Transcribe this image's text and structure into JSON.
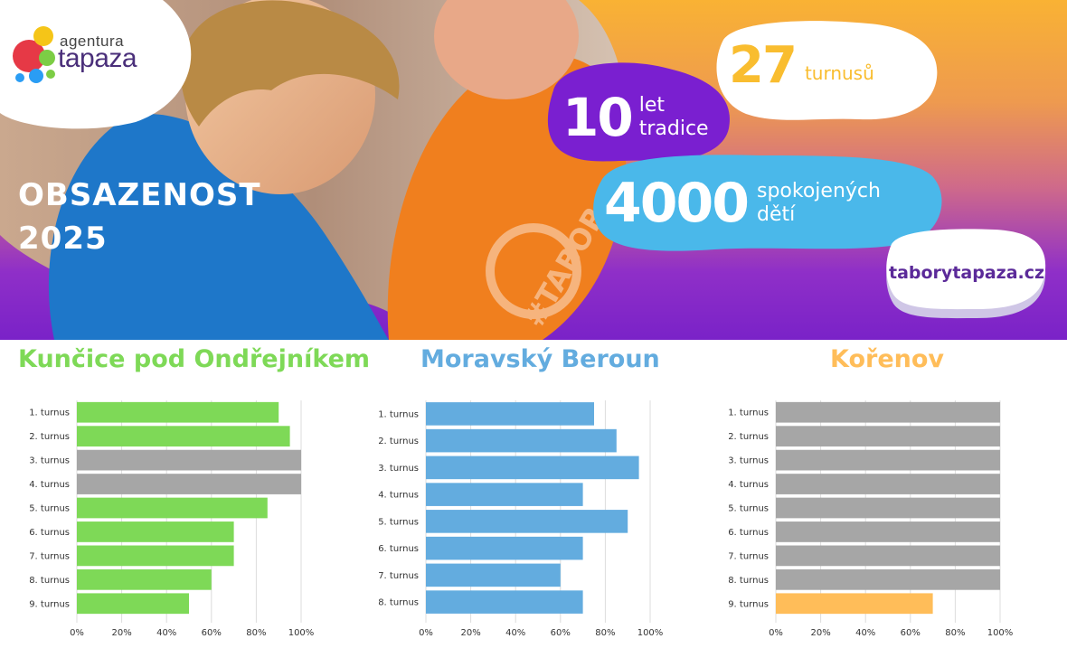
{
  "logo": {
    "top": "agentura",
    "main": "tapaza"
  },
  "hero": {
    "title_line1": "OBSAZENOST",
    "title_line2": "2025",
    "stat_years": {
      "num": "10",
      "line1": "let",
      "line2": "tradice"
    },
    "stat_turns": {
      "num": "27",
      "label": "turnusů"
    },
    "stat_kids": {
      "num": "4000",
      "line1": "spokojených",
      "line2": "dětí"
    },
    "badge_text": "#TABOR",
    "website": "taborytapaza.cz"
  },
  "colors": {
    "green": "#7ed957",
    "blue": "#63acdf",
    "orange": "#ffbd59",
    "gray": "#a6a6a6",
    "purple": "#7a22c8",
    "cyan": "#4ab8ea"
  },
  "chart_data": [
    {
      "type": "bar",
      "title": "Kunčice pod Ondřejníkem",
      "categories": [
        "1. turnus",
        "2. turnus",
        "3. turnus",
        "4. turnus",
        "5. turnus",
        "6. turnus",
        "7. turnus",
        "8. turnus",
        "9. turnus"
      ],
      "values": [
        90,
        95,
        100,
        100,
        85,
        70,
        70,
        60,
        50
      ],
      "full": [
        false,
        false,
        true,
        true,
        false,
        false,
        false,
        false,
        false
      ],
      "xticks": [
        "0%",
        "20%",
        "40%",
        "60%",
        "80%",
        "100%"
      ],
      "xlim": [
        0,
        100
      ],
      "color": "green",
      "grid": true
    },
    {
      "type": "bar",
      "title": "Moravský Beroun",
      "categories": [
        "1. turnus",
        "2. turnus",
        "3. turnus",
        "4. turnus",
        "5. turnus",
        "6. turnus",
        "7. turnus",
        "8. turnus"
      ],
      "values": [
        75,
        85,
        95,
        70,
        90,
        70,
        60,
        70
      ],
      "full": [
        false,
        false,
        false,
        false,
        false,
        false,
        false,
        false
      ],
      "xticks": [
        "0%",
        "20%",
        "40%",
        "60%",
        "80%",
        "100%"
      ],
      "xlim": [
        0,
        100
      ],
      "color": "blue",
      "grid": true
    },
    {
      "type": "bar",
      "title": "Kořenov",
      "categories": [
        "1. turnus",
        "2. turnus",
        "3. turnus",
        "4. turnus",
        "5. turnus",
        "6. turnus",
        "7. turnus",
        "8. turnus",
        "9. turnus"
      ],
      "values": [
        100,
        100,
        100,
        100,
        100,
        100,
        100,
        100,
        70
      ],
      "full": [
        true,
        true,
        true,
        true,
        true,
        true,
        true,
        true,
        false
      ],
      "xticks": [
        "0%",
        "20%",
        "40%",
        "60%",
        "80%",
        "100%"
      ],
      "xlim": [
        0,
        100
      ],
      "color": "orange",
      "grid": true
    }
  ]
}
